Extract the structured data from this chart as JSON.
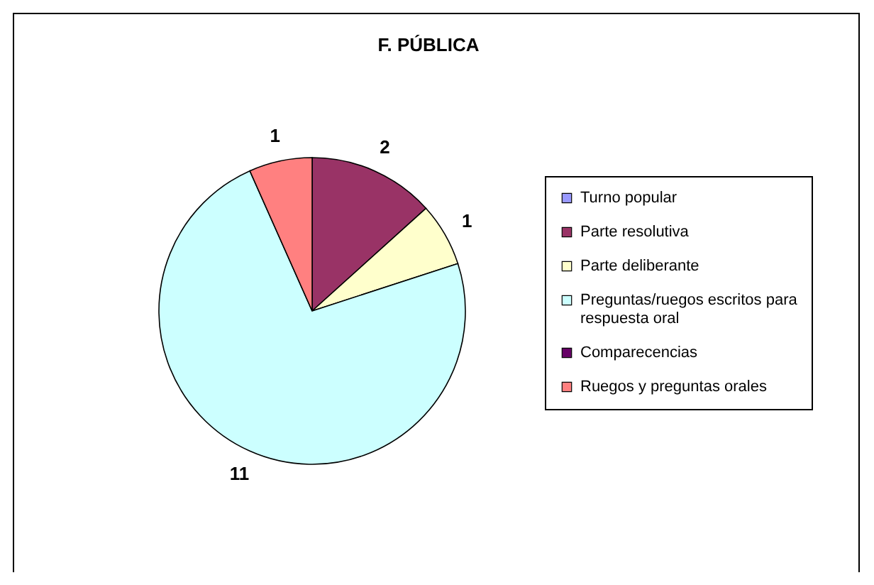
{
  "chart_data": {
    "type": "pie",
    "title": "F. PÚBLICA",
    "categories": [
      "Turno popular",
      "Parte resolutiva",
      "Parte deliberante",
      "Preguntas/ruegos escritos para respuesta oral",
      "Comparecencias",
      "Ruegos y preguntas orales"
    ],
    "values": [
      0,
      2,
      1,
      11,
      0,
      1
    ],
    "colors": [
      "#9999ff",
      "#993366",
      "#ffffcc",
      "#ccffff",
      "#660066",
      "#ff8080"
    ],
    "value_labels": [
      null,
      "2",
      "1",
      "11",
      null,
      "1"
    ],
    "legend": "right"
  }
}
